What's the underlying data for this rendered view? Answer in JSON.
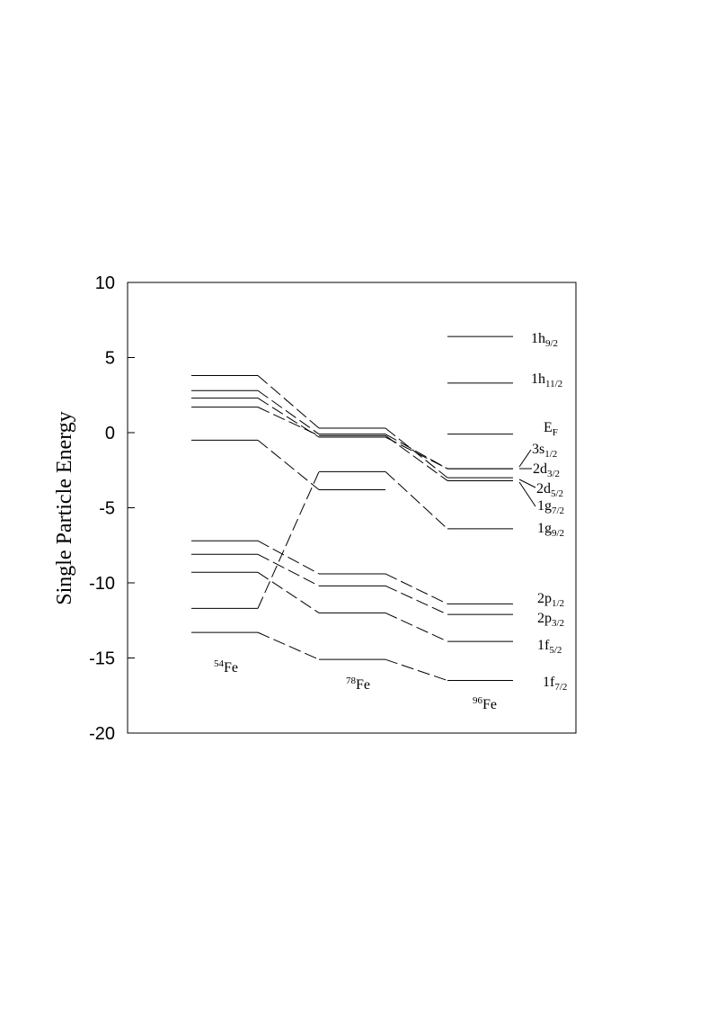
{
  "chart_data": {
    "type": "line",
    "ylabel": "Single Particle Energy",
    "ylim": [
      -20,
      10
    ],
    "yticks": [
      "10",
      "5",
      "0",
      "-5",
      "-10",
      "-15",
      "-20"
    ],
    "grid": false,
    "nuclei": [
      {
        "mass": "54",
        "element": "Fe"
      },
      {
        "mass": "78",
        "element": "Fe"
      },
      {
        "mass": "96",
        "element": "Fe"
      }
    ],
    "levels": [
      {
        "orbital": "1h",
        "sub": "9/2",
        "values": [
          null,
          null,
          6.4
        ]
      },
      {
        "orbital": "1h",
        "sub": "11/2",
        "values": [
          null,
          null,
          3.3
        ]
      },
      {
        "orbital": "E",
        "sub": "F",
        "values": [
          null,
          null,
          -0.1
        ]
      },
      {
        "orbital": "3s",
        "sub": "1/2",
        "values": [
          2.3,
          -0.3,
          -2.4
        ]
      },
      {
        "orbital": "2d",
        "sub": "3/2",
        "values": [
          2.8,
          -0.1,
          -2.4
        ]
      },
      {
        "orbital": "2d",
        "sub": "5/2",
        "values": [
          3.8,
          0.3,
          -3.0
        ]
      },
      {
        "orbital": "1g",
        "sub": "7/2",
        "values": [
          1.7,
          -0.2,
          -3.2
        ]
      },
      {
        "orbital": "1g",
        "sub": "9/2",
        "values": [
          -11.7,
          -2.6,
          -6.4
        ]
      },
      {
        "orbital": "",
        "sub": "",
        "values": [
          -0.5,
          -3.8,
          null
        ]
      },
      {
        "orbital": "2p",
        "sub": "1/2",
        "values": [
          -7.2,
          -9.4,
          -11.4
        ]
      },
      {
        "orbital": "2p",
        "sub": "3/2",
        "values": [
          -8.1,
          -10.2,
          -12.1
        ]
      },
      {
        "orbital": "1f",
        "sub": "5/2",
        "values": [
          -9.3,
          -12.0,
          -13.9
        ]
      },
      {
        "orbital": "1f",
        "sub": "7/2",
        "values": [
          -13.3,
          -15.1,
          -16.5
        ]
      }
    ]
  }
}
